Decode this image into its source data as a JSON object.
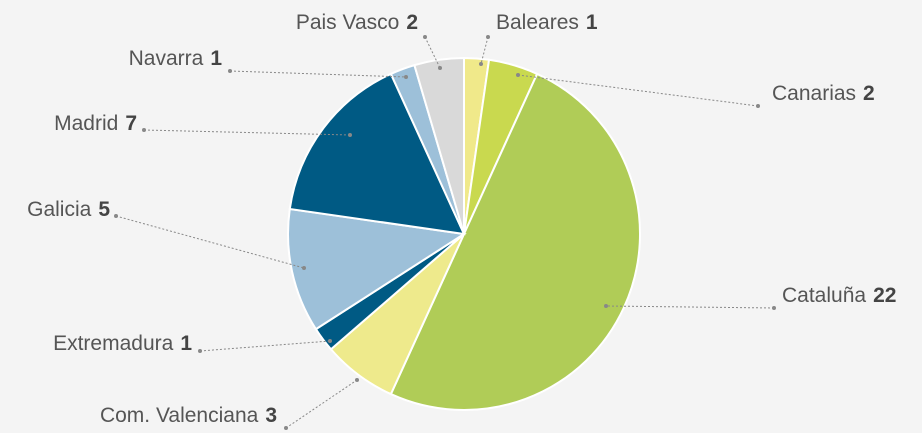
{
  "chart_data": {
    "type": "pie",
    "categories": [
      "Baleares",
      "Canarias",
      "Cataluña",
      "Com. Valenciana",
      "Extremadura",
      "Galicia",
      "Madrid",
      "Navarra",
      "Pais Vasco"
    ],
    "values": [
      1,
      2,
      22,
      3,
      1,
      5,
      7,
      1,
      2
    ],
    "colors": [
      "#f0e98a",
      "#c9d94f",
      "#b0cc57",
      "#eeea8c",
      "#005a84",
      "#9dc0d9",
      "#005a84",
      "#9dc0d9",
      "#d9d9d9"
    ]
  }
}
